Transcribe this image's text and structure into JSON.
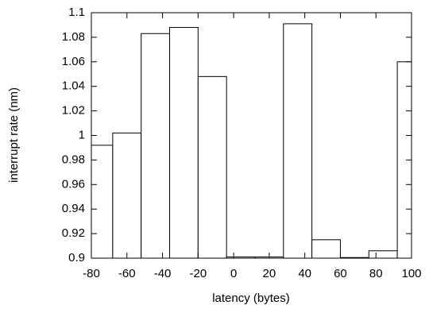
{
  "chart_data": {
    "type": "histogram",
    "x_label": "latency (bytes)",
    "y_label": "interrupt rate (nm)",
    "bins": [
      -84,
      -68,
      -52,
      -36,
      -20,
      -4,
      12,
      28,
      44,
      60,
      76,
      92,
      108
    ],
    "values": [
      0.992,
      1.002,
      1.083,
      1.088,
      1.048,
      0.901,
      0.901,
      1.091,
      0.915,
      0.9005,
      0.906,
      1.06
    ],
    "color": "#ffffff",
    "xlim": [
      -80,
      100
    ],
    "xticks": [
      -80,
      -60,
      -40,
      -20,
      0,
      20,
      40,
      60,
      80,
      100
    ],
    "ylim": [
      0.9,
      1.1
    ],
    "yticks": [
      0.9,
      0.92,
      0.94,
      0.96,
      0.98,
      1,
      1.02,
      1.04,
      1.06,
      1.08,
      1.1
    ],
    "grid": false
  }
}
